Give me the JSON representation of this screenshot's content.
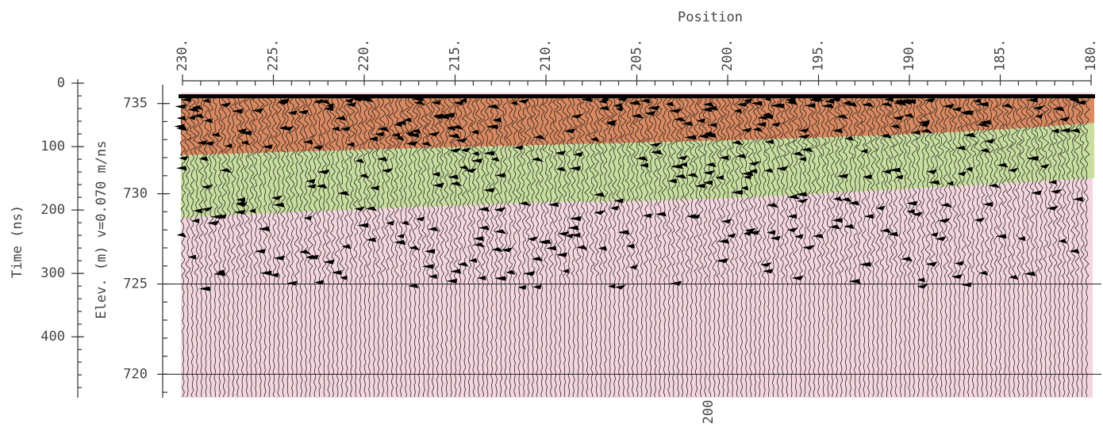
{
  "chart_data": {
    "type": "radargram",
    "xlabel": "Position",
    "ylabel": "Time (ns)",
    "y2label": "Elev. (m) v=0.070 m/ns",
    "annotation": "200",
    "xlim": [
      230,
      180
    ],
    "xticks": [
      {
        "value": 230,
        "label": "230."
      },
      {
        "value": 225,
        "label": "225."
      },
      {
        "value": 220,
        "label": "220."
      },
      {
        "value": 215,
        "label": "215."
      },
      {
        "value": 210,
        "label": "210."
      },
      {
        "value": 205,
        "label": "205."
      },
      {
        "value": 200,
        "label": "200."
      },
      {
        "value": 195,
        "label": "195."
      },
      {
        "value": 190,
        "label": "190."
      },
      {
        "value": 185,
        "label": "185."
      },
      {
        "value": 180,
        "label": "180."
      }
    ],
    "ylim": [
      0,
      496
    ],
    "yticks": [
      0,
      100,
      200,
      300,
      400
    ],
    "y2lim": [
      735.6,
      718.7
    ],
    "y2ticks": [
      735,
      730,
      725,
      720
    ],
    "y2grid": [
      725,
      720
    ],
    "layer_colors": [
      "#d98a62",
      "#c8dea0",
      "#f4d6de"
    ]
  }
}
